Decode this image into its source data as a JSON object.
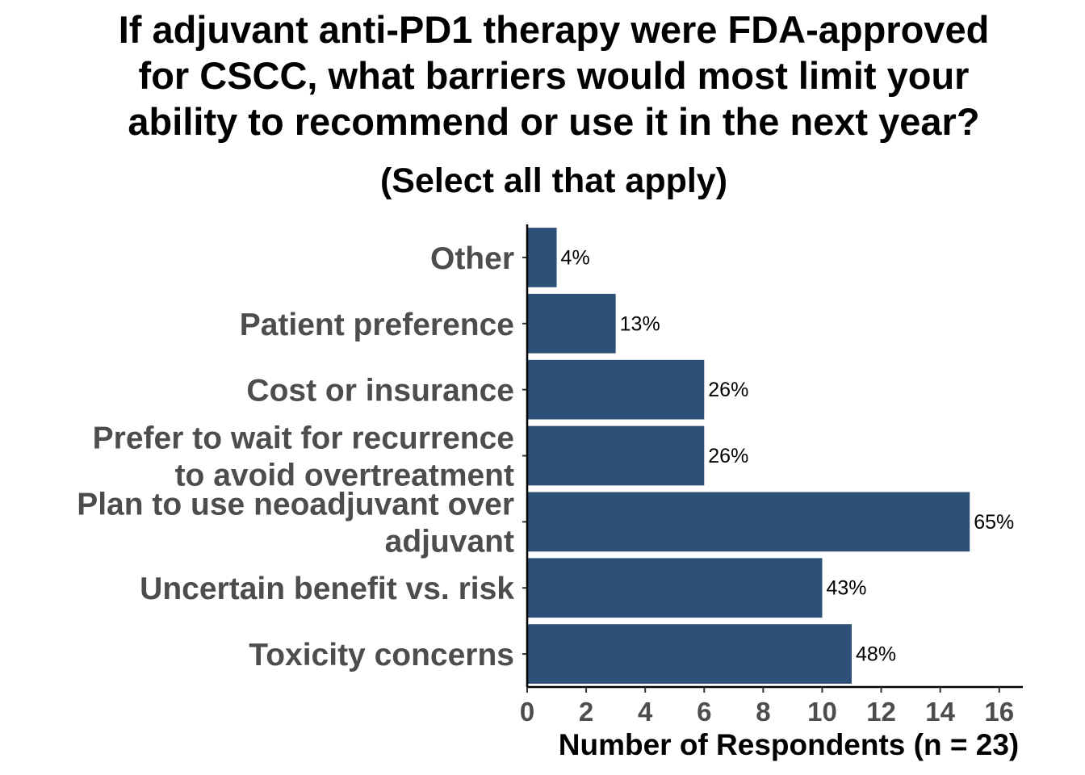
{
  "chart_data": {
    "type": "bar",
    "orientation": "horizontal",
    "title_lines": [
      "If adjuvant anti-PD1 therapy were FDA-approved",
      "for CSCC, what barriers would most limit your",
      "ability to recommend or use it in the next year?"
    ],
    "subtitle": "(Select all that apply)",
    "xlabel": "Number of Respondents (n = 23)",
    "ylabel": "",
    "xlim": [
      0,
      16.8
    ],
    "x_ticks": [
      "0",
      "2",
      "4",
      "6",
      "8",
      "10",
      "12",
      "14",
      "16"
    ],
    "categories": [
      [
        "Other"
      ],
      [
        "Patient preference"
      ],
      [
        "Cost or insurance"
      ],
      [
        "Prefer to wait for recurrence",
        "to avoid overtreatment"
      ],
      [
        "Plan to use neoadjuvant over",
        "adjuvant"
      ],
      [
        "Uncertain benefit vs. risk"
      ],
      [
        "Toxicity concerns"
      ]
    ],
    "values": [
      1,
      3,
      6,
      6,
      15,
      10,
      11
    ],
    "data_labels": [
      "4%",
      "13%",
      "26%",
      "26%",
      "65%",
      "43%",
      "48%"
    ],
    "bar_color": "#2c5077",
    "grid": false,
    "legend": "none"
  }
}
